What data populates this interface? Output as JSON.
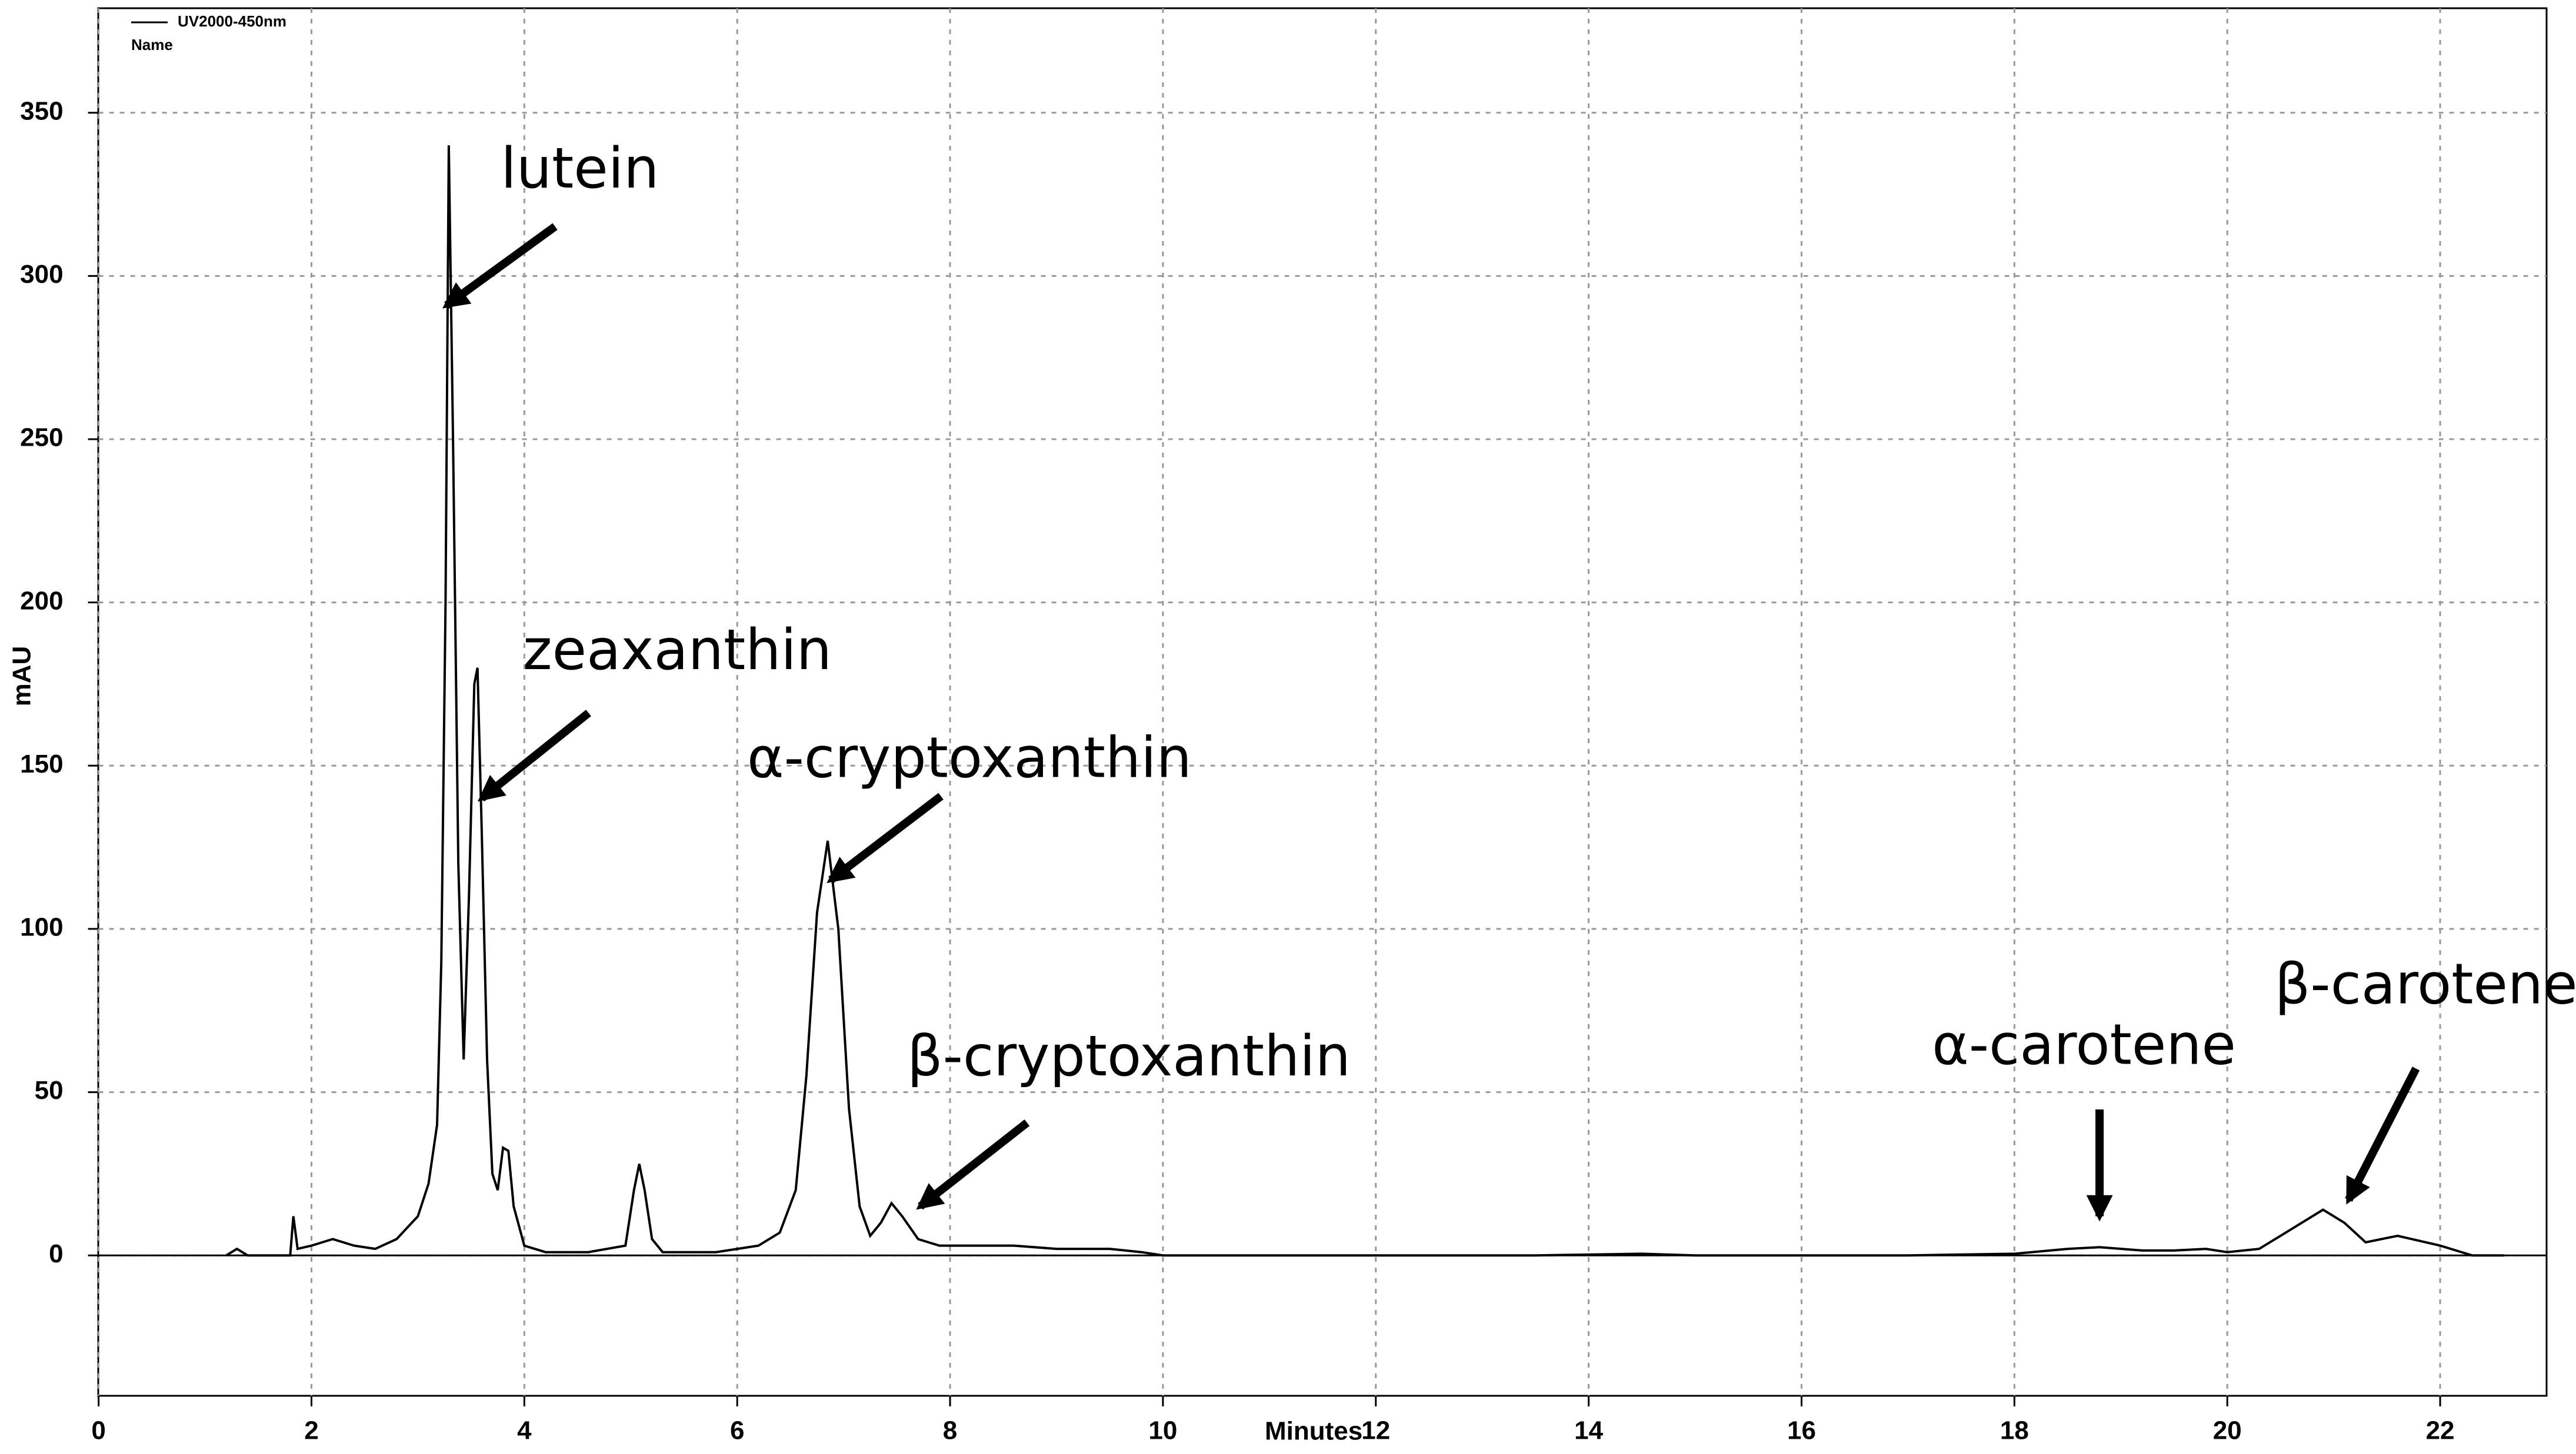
{
  "chart_data": {
    "type": "line",
    "legend": [
      "UV2000-450nm",
      "Name"
    ],
    "xlabel": "Minutes",
    "ylabel": "mAU",
    "xlim": [
      0,
      23
    ],
    "ylim": [
      -43,
      382
    ],
    "xticks": [
      0,
      2,
      4,
      6,
      8,
      10,
      12,
      14,
      16,
      18,
      20,
      22
    ],
    "yticks": [
      0,
      50,
      100,
      150,
      200,
      250,
      300,
      350
    ],
    "grid": true,
    "x": [
      1.2,
      1.3,
      1.4,
      1.8,
      1.83,
      1.87,
      2.0,
      2.2,
      2.4,
      2.6,
      2.8,
      3.0,
      3.1,
      3.18,
      3.22,
      3.26,
      3.29,
      3.33,
      3.38,
      3.43,
      3.48,
      3.53,
      3.56,
      3.6,
      3.65,
      3.7,
      3.75,
      3.8,
      3.85,
      3.9,
      4.0,
      4.2,
      4.6,
      4.95,
      5.03,
      5.08,
      5.13,
      5.2,
      5.3,
      5.8,
      6.2,
      6.4,
      6.55,
      6.65,
      6.75,
      6.85,
      6.95,
      7.05,
      7.15,
      7.25,
      7.35,
      7.45,
      7.55,
      7.7,
      7.9,
      8.2,
      8.6,
      9.0,
      9.5,
      9.8,
      10,
      12,
      13.5,
      14.5,
      15,
      17,
      18,
      18.5,
      18.8,
      19.2,
      19.5,
      19.8,
      20.0,
      20.3,
      20.6,
      20.9,
      21.1,
      21.3,
      21.6,
      22.0,
      22.3,
      22.6
    ],
    "series": [
      {
        "name": "UV2000-450nm",
        "color": "#000000",
        "values": [
          0,
          2,
          0,
          0,
          12,
          2,
          3,
          5,
          3,
          2,
          5,
          12,
          22,
          40,
          90,
          200,
          340,
          250,
          120,
          60,
          110,
          175,
          180,
          130,
          60,
          25,
          20,
          33,
          32,
          15,
          3,
          1,
          1,
          3,
          20,
          28,
          20,
          5,
          1,
          1,
          3,
          7,
          20,
          55,
          105,
          127,
          100,
          45,
          15,
          6,
          10,
          16,
          12,
          5,
          3,
          3,
          3,
          2,
          2,
          1,
          0,
          0,
          0,
          0.5,
          0,
          0,
          0.5,
          2,
          2.5,
          1.5,
          1.5,
          2,
          1,
          2,
          8,
          14,
          10,
          4,
          6,
          3,
          0,
          0
        ]
      }
    ],
    "annotations": [
      {
        "text": "lutein",
        "x": 3.27,
        "y": 291
      },
      {
        "text": "zeaxanthin",
        "x": 3.6,
        "y": 140
      },
      {
        "text": "α-cryptoxanthin",
        "x": 6.88,
        "y": 115
      },
      {
        "text": "β-cryptoxanthin",
        "x": 7.72,
        "y": 15
      },
      {
        "text": "α-carotene",
        "x": 18.8,
        "y": 12
      },
      {
        "text": "β-carotene",
        "x": 21.14,
        "y": 17
      }
    ]
  }
}
